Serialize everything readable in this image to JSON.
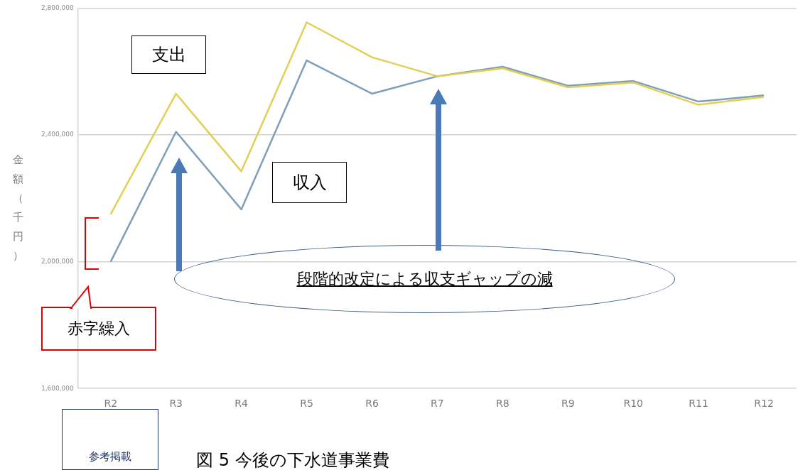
{
  "chart_data": {
    "type": "line",
    "ylabel": "金額（千円）",
    "categories": [
      "R2",
      "R3",
      "R4",
      "R5",
      "R6",
      "R7",
      "R8",
      "R9",
      "R10",
      "R11",
      "R12"
    ],
    "series": [
      {
        "color": "#e3cf55",
        "values": [
          2150000,
          2530000,
          2285000,
          2755000,
          2645000,
          2585000,
          2610000,
          2550000,
          2565000,
          2495000,
          2520000
        ]
      },
      {
        "color": "#7f9fb9",
        "values": [
          2000000,
          2410000,
          2165000,
          2635000,
          2530000,
          2585000,
          2615000,
          2555000,
          2570000,
          2505000,
          2525000
        ]
      }
    ],
    "ylim": [
      1600000,
      2800000
    ],
    "yticks": [
      {
        "value": 1600000,
        "label": "1,600,000"
      },
      {
        "value": 2000000,
        "label": "2,000,000"
      },
      {
        "value": 2400000,
        "label": "2,400,000"
      },
      {
        "value": 2800000,
        "label": "2,800,000"
      }
    ],
    "grid": "y",
    "legend": false,
    "marker": "none",
    "line_style": "solid",
    "annotations": [
      "支出",
      "収入",
      "段階的改定による収支ギャップの減",
      "赤字繰入",
      "参考掲載",
      "図 5 今後の下水道事業費"
    ]
  }
}
